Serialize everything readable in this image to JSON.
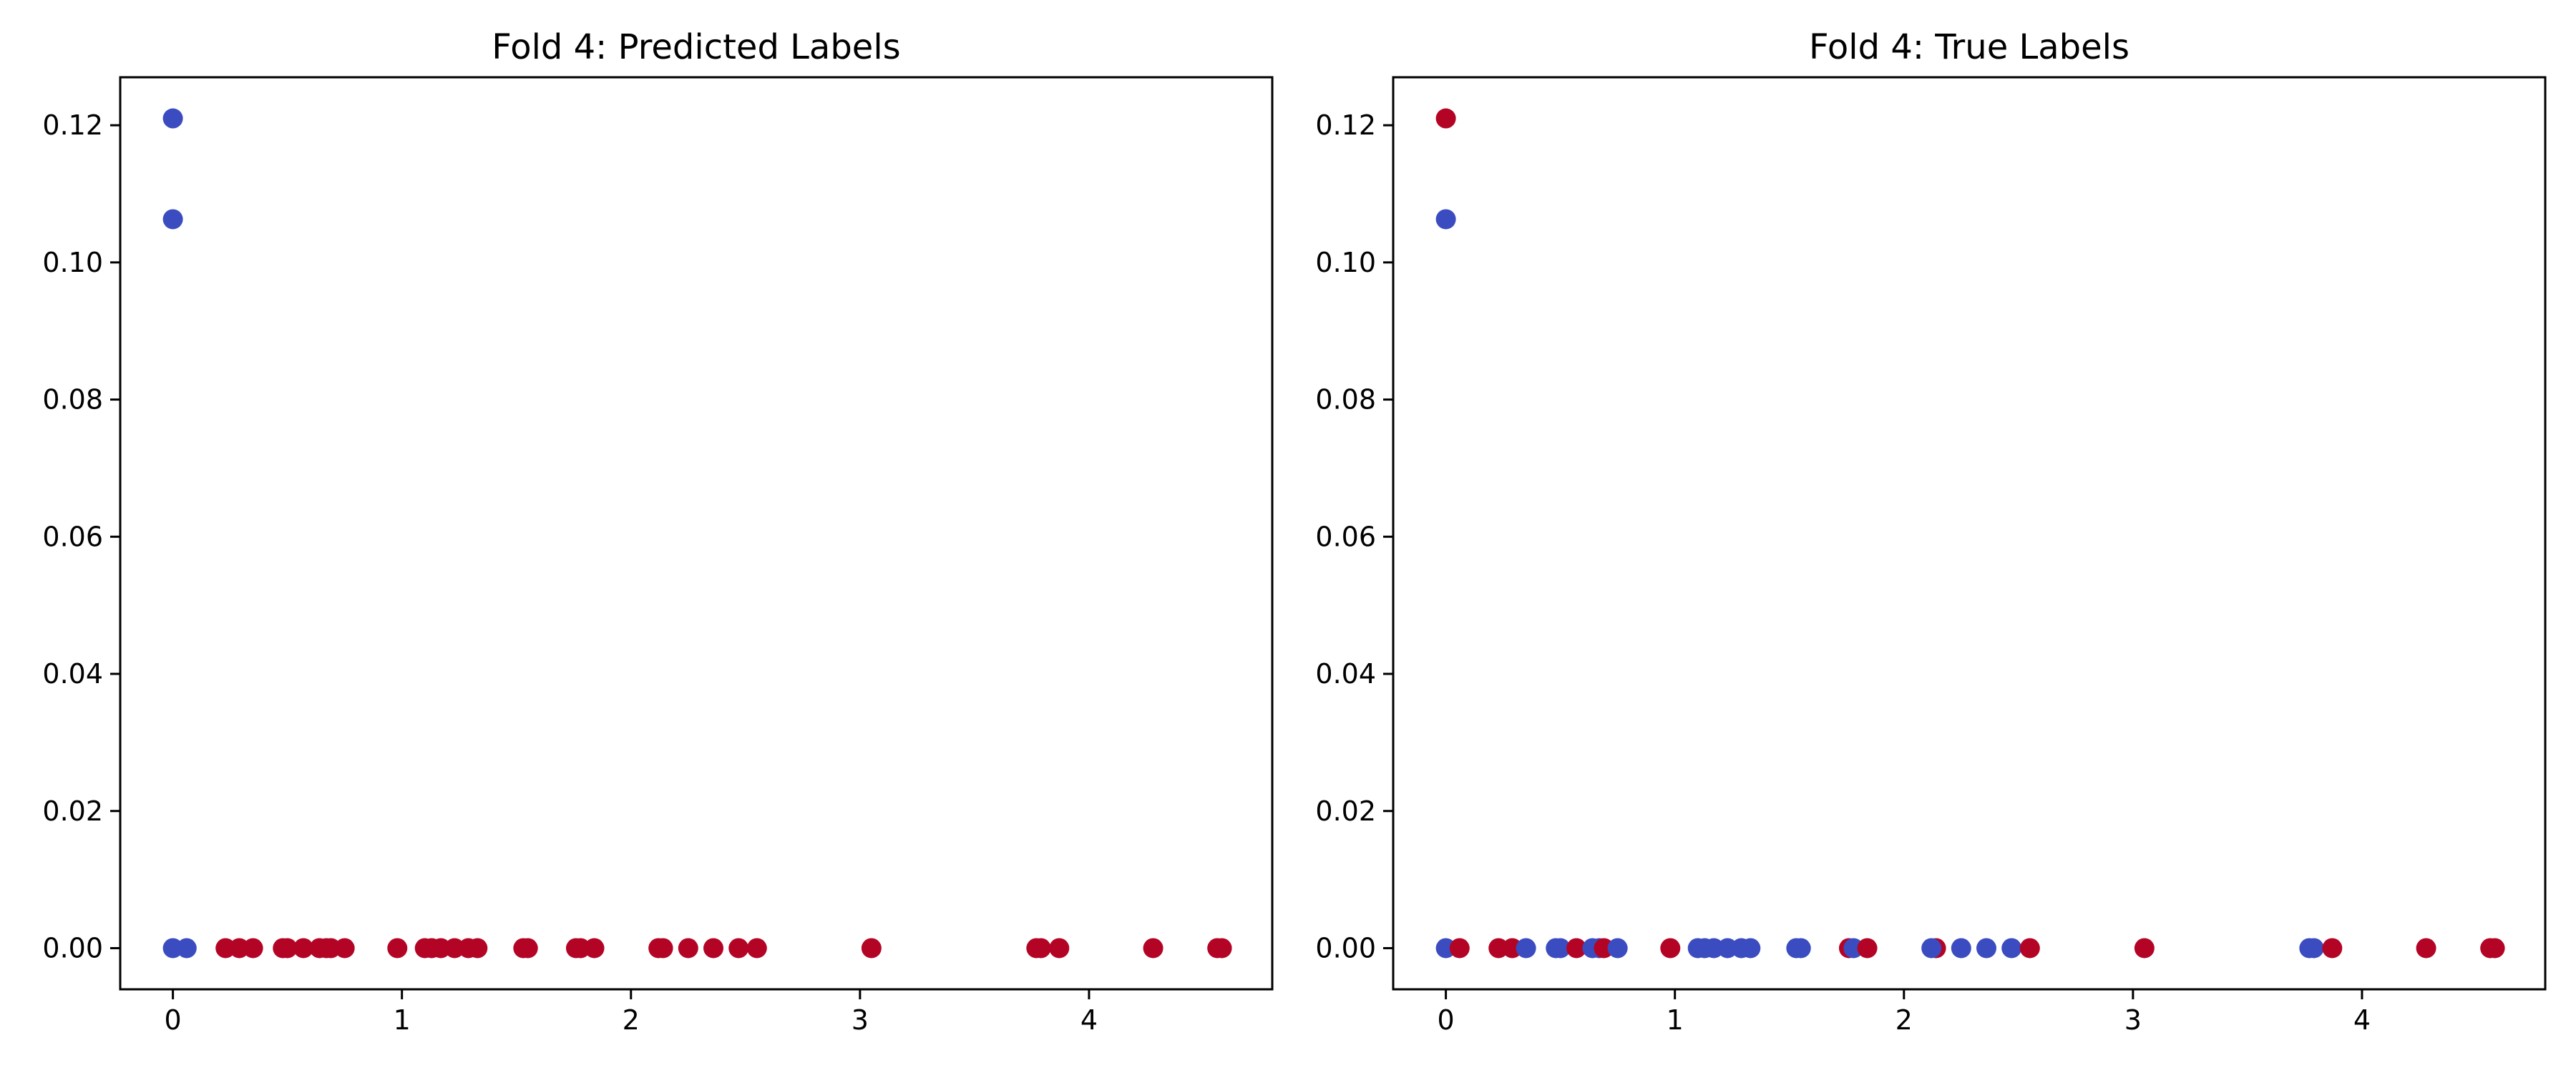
{
  "colors": {
    "class0": "#3b4cc0",
    "class1": "#b40426"
  },
  "chart_data": [
    {
      "type": "scatter",
      "title": "Fold 4: Predicted Labels",
      "xlabel": "",
      "ylabel": "",
      "xlim": [
        -0.23,
        4.8
      ],
      "ylim": [
        -0.006,
        0.127
      ],
      "xticks": [
        0,
        1,
        2,
        3,
        4
      ],
      "xtick_labels": [
        "0",
        "1",
        "2",
        "3",
        "4"
      ],
      "yticks": [
        0.0,
        0.02,
        0.04,
        0.06,
        0.08,
        0.1,
        0.12
      ],
      "ytick_labels": [
        "0.00",
        "0.02",
        "0.04",
        "0.06",
        "0.08",
        "0.10",
        "0.12"
      ],
      "grid": false,
      "points": [
        {
          "x": 0.0,
          "y": 0.121,
          "label": 0
        },
        {
          "x": 0.0,
          "y": 0.1063,
          "label": 0
        },
        {
          "x": 0.0,
          "y": 0.0,
          "label": 0
        },
        {
          "x": 0.06,
          "y": 0.0,
          "label": 0
        },
        {
          "x": 0.23,
          "y": 0.0,
          "label": 1
        },
        {
          "x": 0.29,
          "y": 0.0,
          "label": 1
        },
        {
          "x": 0.35,
          "y": 0.0,
          "label": 1
        },
        {
          "x": 0.48,
          "y": 0.0,
          "label": 1
        },
        {
          "x": 0.5,
          "y": 0.0,
          "label": 1
        },
        {
          "x": 0.57,
          "y": 0.0,
          "label": 1
        },
        {
          "x": 0.64,
          "y": 0.0,
          "label": 1
        },
        {
          "x": 0.67,
          "y": 0.0,
          "label": 1
        },
        {
          "x": 0.69,
          "y": 0.0,
          "label": 1
        },
        {
          "x": 0.75,
          "y": 0.0,
          "label": 1
        },
        {
          "x": 0.98,
          "y": 0.0,
          "label": 1
        },
        {
          "x": 1.1,
          "y": 0.0,
          "label": 1
        },
        {
          "x": 1.13,
          "y": 0.0,
          "label": 1
        },
        {
          "x": 1.17,
          "y": 0.0,
          "label": 1
        },
        {
          "x": 1.23,
          "y": 0.0,
          "label": 1
        },
        {
          "x": 1.29,
          "y": 0.0,
          "label": 1
        },
        {
          "x": 1.33,
          "y": 0.0,
          "label": 1
        },
        {
          "x": 1.53,
          "y": 0.0,
          "label": 1
        },
        {
          "x": 1.55,
          "y": 0.0,
          "label": 1
        },
        {
          "x": 1.76,
          "y": 0.0,
          "label": 1
        },
        {
          "x": 1.78,
          "y": 0.0,
          "label": 1
        },
        {
          "x": 1.84,
          "y": 0.0,
          "label": 1
        },
        {
          "x": 2.12,
          "y": 0.0,
          "label": 1
        },
        {
          "x": 2.14,
          "y": 0.0,
          "label": 1
        },
        {
          "x": 2.25,
          "y": 0.0,
          "label": 1
        },
        {
          "x": 2.36,
          "y": 0.0,
          "label": 1
        },
        {
          "x": 2.47,
          "y": 0.0,
          "label": 1
        },
        {
          "x": 2.55,
          "y": 0.0,
          "label": 1
        },
        {
          "x": 3.05,
          "y": 0.0,
          "label": 1
        },
        {
          "x": 3.77,
          "y": 0.0,
          "label": 1
        },
        {
          "x": 3.79,
          "y": 0.0,
          "label": 1
        },
        {
          "x": 3.87,
          "y": 0.0,
          "label": 1
        },
        {
          "x": 4.28,
          "y": 0.0,
          "label": 1
        },
        {
          "x": 4.56,
          "y": 0.0,
          "label": 1
        },
        {
          "x": 4.58,
          "y": 0.0,
          "label": 1
        }
      ]
    },
    {
      "type": "scatter",
      "title": "Fold 4: True Labels",
      "xlabel": "",
      "ylabel": "",
      "xlim": [
        -0.23,
        4.8
      ],
      "ylim": [
        -0.006,
        0.127
      ],
      "xticks": [
        0,
        1,
        2,
        3,
        4
      ],
      "xtick_labels": [
        "0",
        "1",
        "2",
        "3",
        "4"
      ],
      "yticks": [
        0.0,
        0.02,
        0.04,
        0.06,
        0.08,
        0.1,
        0.12
      ],
      "ytick_labels": [
        "0.00",
        "0.02",
        "0.04",
        "0.06",
        "0.08",
        "0.10",
        "0.12"
      ],
      "grid": false,
      "points": [
        {
          "x": 0.0,
          "y": 0.121,
          "label": 1
        },
        {
          "x": 0.0,
          "y": 0.1063,
          "label": 0
        },
        {
          "x": 0.0,
          "y": 0.0,
          "label": 0
        },
        {
          "x": 0.06,
          "y": 0.0,
          "label": 1
        },
        {
          "x": 0.23,
          "y": 0.0,
          "label": 1
        },
        {
          "x": 0.29,
          "y": 0.0,
          "label": 1
        },
        {
          "x": 0.35,
          "y": 0.0,
          "label": 0
        },
        {
          "x": 0.48,
          "y": 0.0,
          "label": 0
        },
        {
          "x": 0.5,
          "y": 0.0,
          "label": 0
        },
        {
          "x": 0.57,
          "y": 0.0,
          "label": 1
        },
        {
          "x": 0.64,
          "y": 0.0,
          "label": 0
        },
        {
          "x": 0.67,
          "y": 0.0,
          "label": 0
        },
        {
          "x": 0.69,
          "y": 0.0,
          "label": 1
        },
        {
          "x": 0.75,
          "y": 0.0,
          "label": 0
        },
        {
          "x": 0.98,
          "y": 0.0,
          "label": 1
        },
        {
          "x": 1.1,
          "y": 0.0,
          "label": 0
        },
        {
          "x": 1.13,
          "y": 0.0,
          "label": 0
        },
        {
          "x": 1.17,
          "y": 0.0,
          "label": 0
        },
        {
          "x": 1.23,
          "y": 0.0,
          "label": 0
        },
        {
          "x": 1.29,
          "y": 0.0,
          "label": 0
        },
        {
          "x": 1.33,
          "y": 0.0,
          "label": 0
        },
        {
          "x": 1.53,
          "y": 0.0,
          "label": 0
        },
        {
          "x": 1.55,
          "y": 0.0,
          "label": 0
        },
        {
          "x": 1.76,
          "y": 0.0,
          "label": 1
        },
        {
          "x": 1.78,
          "y": 0.0,
          "label": 0
        },
        {
          "x": 1.84,
          "y": 0.0,
          "label": 1
        },
        {
          "x": 2.14,
          "y": 0.0,
          "label": 1
        },
        {
          "x": 2.12,
          "y": 0.0,
          "label": 0
        },
        {
          "x": 2.25,
          "y": 0.0,
          "label": 0
        },
        {
          "x": 2.36,
          "y": 0.0,
          "label": 0
        },
        {
          "x": 2.47,
          "y": 0.0,
          "label": 0
        },
        {
          "x": 2.55,
          "y": 0.0,
          "label": 1
        },
        {
          "x": 3.05,
          "y": 0.0,
          "label": 1
        },
        {
          "x": 3.77,
          "y": 0.0,
          "label": 0
        },
        {
          "x": 3.79,
          "y": 0.0,
          "label": 0
        },
        {
          "x": 3.87,
          "y": 0.0,
          "label": 1
        },
        {
          "x": 4.28,
          "y": 0.0,
          "label": 1
        },
        {
          "x": 4.56,
          "y": 0.0,
          "label": 1
        },
        {
          "x": 4.58,
          "y": 0.0,
          "label": 1
        }
      ]
    }
  ]
}
